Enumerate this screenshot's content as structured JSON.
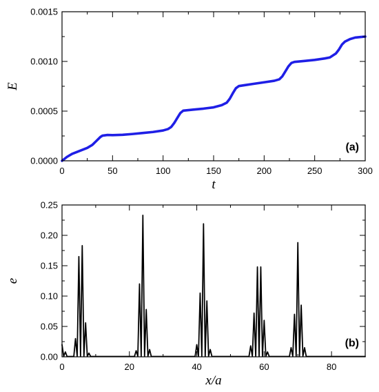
{
  "chart_data": [
    {
      "type": "line",
      "panel_label": "(a)",
      "xlabel": "t",
      "ylabel": "E",
      "xlim": [
        0,
        300
      ],
      "ylim": [
        0,
        0.0015
      ],
      "xticks": [
        0,
        50,
        100,
        150,
        200,
        250,
        300
      ],
      "xtick_labels": [
        "0",
        "50",
        "100",
        "150",
        "200",
        "250",
        "300"
      ],
      "yticks": [
        0,
        0.0005,
        0.001,
        0.0015
      ],
      "ytick_labels": [
        "0.0000",
        "0.0005",
        "0.0010",
        "0.0015"
      ],
      "grid": false,
      "color": "#1f1fe6",
      "series": [
        {
          "x": [
            0,
            5,
            10,
            15,
            20,
            25,
            30,
            33,
            36,
            38,
            40,
            45,
            50,
            60,
            70,
            80,
            90,
            100,
            105,
            108,
            111,
            114,
            117,
            120,
            125,
            130,
            140,
            150,
            158,
            163,
            166,
            169,
            172,
            175,
            180,
            190,
            200,
            210,
            215,
            218,
            221,
            224,
            227,
            230,
            240,
            250,
            260,
            265,
            268,
            271,
            274,
            277,
            280,
            285,
            290,
            295,
            300
          ],
          "y": [
            0.0,
            4e-05,
            7e-05,
            9e-05,
            0.00011,
            0.00013,
            0.00016,
            0.00019,
            0.00022,
            0.00024,
            0.000253,
            0.00026,
            0.000258,
            0.000262,
            0.00027,
            0.00028,
            0.00029,
            0.000305,
            0.00032,
            0.00034,
            0.00038,
            0.00043,
            0.00048,
            0.000505,
            0.00051,
            0.000515,
            0.000525,
            0.000538,
            0.00056,
            0.000585,
            0.000625,
            0.00068,
            0.00073,
            0.000752,
            0.00076,
            0.000775,
            0.00079,
            0.000805,
            0.00082,
            0.00085,
            0.0009,
            0.00095,
            0.000985,
            0.000995,
            0.001005,
            0.001015,
            0.00103,
            0.00104,
            0.00106,
            0.00108,
            0.00112,
            0.00117,
            0.0012,
            0.001225,
            0.00124,
            0.001245,
            0.00125
          ]
        }
      ]
    },
    {
      "type": "line",
      "panel_label": "(b)",
      "xlabel": "x/a",
      "ylabel": "e",
      "xlim": [
        0,
        90
      ],
      "ylim": [
        0,
        0.25
      ],
      "xticks": [
        0,
        20,
        40,
        60,
        80
      ],
      "xtick_labels": [
        "0",
        "20",
        "40",
        "60",
        "80"
      ],
      "yticks": [
        0,
        0.05,
        0.1,
        0.15,
        0.2,
        0.25
      ],
      "ytick_labels": [
        "0.00",
        "0.05",
        "0.10",
        "0.15",
        "0.20",
        "0.25"
      ],
      "grid": false,
      "color": "#000000",
      "peaks": [
        {
          "x": 0.0,
          "y": 0.02
        },
        {
          "x": 1.0,
          "y": 0.008
        },
        {
          "x": 4.0,
          "y": 0.03
        },
        {
          "x": 5.0,
          "y": 0.165
        },
        {
          "x": 6.0,
          "y": 0.183
        },
        {
          "x": 7.0,
          "y": 0.056
        },
        {
          "x": 8.0,
          "y": 0.006
        },
        {
          "x": 22.0,
          "y": 0.01
        },
        {
          "x": 23.0,
          "y": 0.12
        },
        {
          "x": 24.0,
          "y": 0.233
        },
        {
          "x": 25.0,
          "y": 0.078
        },
        {
          "x": 26.0,
          "y": 0.012
        },
        {
          "x": 40.0,
          "y": 0.02
        },
        {
          "x": 41.0,
          "y": 0.105
        },
        {
          "x": 42.0,
          "y": 0.219
        },
        {
          "x": 43.0,
          "y": 0.092
        },
        {
          "x": 44.0,
          "y": 0.012
        },
        {
          "x": 56.0,
          "y": 0.018
        },
        {
          "x": 57.0,
          "y": 0.072
        },
        {
          "x": 58.0,
          "y": 0.148
        },
        {
          "x": 59.0,
          "y": 0.148
        },
        {
          "x": 60.0,
          "y": 0.06
        },
        {
          "x": 61.0,
          "y": 0.008
        },
        {
          "x": 68.0,
          "y": 0.015
        },
        {
          "x": 69.0,
          "y": 0.07
        },
        {
          "x": 70.0,
          "y": 0.188
        },
        {
          "x": 71.0,
          "y": 0.085
        },
        {
          "x": 72.0,
          "y": 0.015
        }
      ]
    }
  ]
}
